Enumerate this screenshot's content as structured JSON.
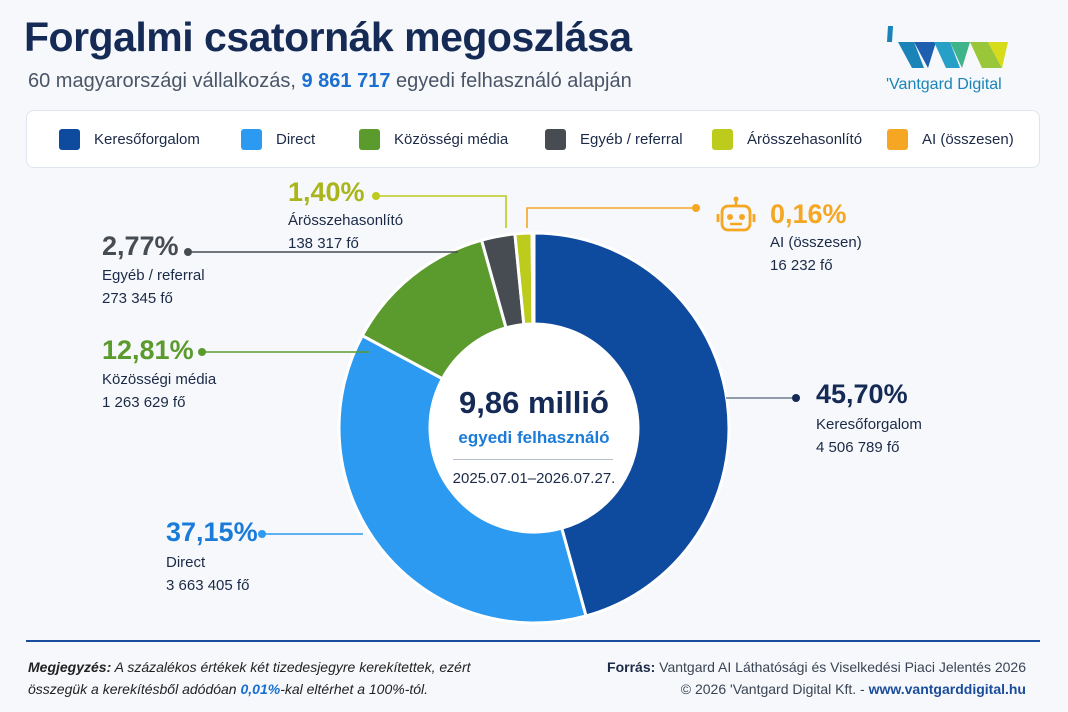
{
  "header": {
    "title": "Forgalmi csatornák megoszlása",
    "subtitle_pre": "60 magyarországi vállalkozás,",
    "subtitle_highlight": "9 861 717",
    "subtitle_post": "egyedi felhasználó alapján"
  },
  "logo": {
    "text": "'Vantgard Digital"
  },
  "legend": [
    {
      "label": "Keresőforgalom",
      "color": "#0e4a9e"
    },
    {
      "label": "Direct",
      "color": "#2b9af0"
    },
    {
      "label": "Közösségi média",
      "color": "#5b9a2c"
    },
    {
      "label": "Egyéb / referral",
      "color": "#474c52"
    },
    {
      "label": "Árösszehasonlító",
      "color": "#bccb1c"
    },
    {
      "label": "AI (összesen)",
      "color": "#f5a623"
    }
  ],
  "center": {
    "value": "9,86 millió",
    "label": "egyedi felhasználó",
    "date": "2025.07.01–2026.07.27."
  },
  "callouts": [
    {
      "pct": "45,70%",
      "name": "Keresőforgalom",
      "count": "4 506 789 fő"
    },
    {
      "pct": "37,15%",
      "name": "Direct",
      "count": "3 663 405 fő"
    },
    {
      "pct": "12,81%",
      "name": "Közösségi média",
      "count": "1 263 629 fő"
    },
    {
      "pct": "2,77%",
      "name": "Egyéb / referral",
      "count": "273 345 fő"
    },
    {
      "pct": "1,40%",
      "name": "Árösszehasonlító",
      "count": "138 317 fő"
    },
    {
      "pct": "0,16%",
      "name": "AI (összesen)",
      "count": "16 232 fő"
    }
  ],
  "chart_data": {
    "type": "pie",
    "variant": "donut",
    "categories": [
      "Keresőforgalom",
      "Direct",
      "Közösségi média",
      "Egyéb / referral",
      "Árösszehasonlító",
      "AI (összesen)"
    ],
    "values": [
      45.7,
      37.15,
      12.81,
      2.77,
      1.4,
      0.16
    ],
    "counts": [
      4506789,
      3663405,
      1263629,
      273345,
      138317,
      16232
    ],
    "colors": [
      "#0e4a9e",
      "#2b9af0",
      "#5b9a2c",
      "#474c52",
      "#bccb1c",
      "#f5a623"
    ],
    "title": "Forgalmi csatornák megoszlása",
    "legend_position": "top"
  },
  "footer": {
    "note_label": "Megjegyzés:",
    "note_text_1": "A százalékos értékek két tizedesjegyre kerekítettek, ezért összegük a kerekítésből adódóan",
    "note_highlight": "0,01%",
    "note_text_2": "-kal eltérhet a 100%-tól.",
    "source_label": "Forrás:",
    "source_text": "Vantgard AI Láthatósági és Viselkedési Piaci Jelentés 2026",
    "copyright": "© 2026 'Vantgard Digital Kft. -",
    "url": "www.vantgarddigital.hu"
  }
}
